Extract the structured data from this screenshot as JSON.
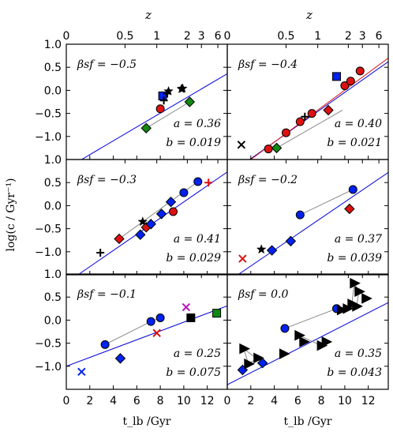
{
  "figure": {
    "ylabel": "log(c / Gyr⁻¹)",
    "top_xlabel": "z",
    "bottom_xlabel": "t_lb /Gyr"
  },
  "chart_data": {
    "type": "scatter",
    "grid": false,
    "shared_axes": {
      "x": {
        "label": "t_lb /Gyr",
        "range": [
          0,
          13.7
        ],
        "ticks": [
          0,
          2,
          4,
          6,
          8,
          10,
          12
        ]
      },
      "y": {
        "label": "log(c / Gyr⁻¹)",
        "range": [
          -1.5,
          1.0
        ],
        "ticks": [
          1.0,
          0.5,
          0.0,
          -0.5,
          -1.0
        ]
      },
      "top": {
        "label": "z",
        "tick_labels": [
          "0",
          "0.5",
          "1",
          "2",
          "3",
          "6"
        ],
        "tick_positions_tlb": [
          0,
          5.0,
          7.7,
          10.3,
          11.5,
          12.9
        ]
      }
    },
    "panels": [
      {
        "id": "p1",
        "row": 0,
        "col": 0,
        "beta_label": "βsf = −0.5",
        "a_label": "a = 0.36",
        "b_label": "b = 0.019",
        "fit_lines": [
          {
            "color": "#0000dd",
            "x": [
              1.3,
              13.7
            ],
            "y": [
              -1.5,
              0.36
            ]
          }
        ],
        "connectors": [
          [
            [
              6.8,
              -0.82
            ],
            [
              10.5,
              -0.25
            ]
          ]
        ],
        "markers": [
          {
            "shape": "diamond",
            "color": "#118811",
            "x": 6.8,
            "y": -0.82
          },
          {
            "shape": "diamond",
            "color": "#118811",
            "x": 10.5,
            "y": -0.25
          },
          {
            "shape": "square",
            "color": "#0022ee",
            "x": 8.2,
            "y": -0.12
          },
          {
            "shape": "circle",
            "color": "#dd1111",
            "x": 8.0,
            "y": -0.4
          },
          {
            "shape": "plus",
            "color": "#000000",
            "x": 8.6,
            "y": -0.07
          },
          {
            "shape": "plus",
            "color": "#000000",
            "x": 8.3,
            "y": -0.22
          },
          {
            "shape": "star",
            "color": "#000000",
            "x": 8.7,
            "y": -0.02
          },
          {
            "shape": "star",
            "color": "#000000",
            "x": 9.8,
            "y": 0.03
          },
          {
            "shape": "star",
            "color": "#000000",
            "x": 9.9,
            "y": 0.04
          }
        ]
      },
      {
        "id": "p2",
        "row": 0,
        "col": 1,
        "beta_label": "βsf = −0.4",
        "a_label": "a = 0.40",
        "b_label": "b = 0.021",
        "fit_lines": [
          {
            "color": "#0000dd",
            "x": [
              1.9,
              13.7
            ],
            "y": [
              -1.5,
              0.62
            ]
          },
          {
            "color": "#dd1111",
            "x": [
              2.0,
              13.7
            ],
            "y": [
              -1.5,
              0.7
            ]
          }
        ],
        "connectors": [
          [
            [
              4.2,
              -1.25
            ],
            [
              9.8,
              -0.43
            ]
          ]
        ],
        "markers": [
          {
            "shape": "x",
            "color": "#000000",
            "x": 1.2,
            "y": -1.18
          },
          {
            "shape": "circle",
            "color": "#dd1111",
            "x": 3.5,
            "y": -1.27
          },
          {
            "shape": "diamond",
            "color": "#118811",
            "x": 4.2,
            "y": -1.25
          },
          {
            "shape": "circle",
            "color": "#dd1111",
            "x": 5.0,
            "y": -0.92
          },
          {
            "shape": "circle",
            "color": "#dd1111",
            "x": 6.2,
            "y": -0.68
          },
          {
            "shape": "plus",
            "color": "#000000",
            "x": 6.6,
            "y": -0.57
          },
          {
            "shape": "circle",
            "color": "#dd1111",
            "x": 7.2,
            "y": -0.5
          },
          {
            "shape": "diamond",
            "color": "#dd1111",
            "x": 8.6,
            "y": -0.43
          },
          {
            "shape": "square",
            "color": "#0022ee",
            "x": 9.3,
            "y": 0.3
          },
          {
            "shape": "circle",
            "color": "#dd1111",
            "x": 10.0,
            "y": 0.1
          },
          {
            "shape": "circle",
            "color": "#dd1111",
            "x": 10.5,
            "y": 0.2
          },
          {
            "shape": "circle",
            "color": "#dd1111",
            "x": 11.3,
            "y": 0.42
          }
        ]
      },
      {
        "id": "p3",
        "row": 1,
        "col": 0,
        "beta_label": "βsf = −0.3",
        "a_label": "a = 0.41",
        "b_label": "b = 0.029",
        "fit_lines": [
          {
            "color": "#0000dd",
            "x": [
              1.0,
              13.7
            ],
            "y": [
              -1.5,
              0.73
            ]
          }
        ],
        "connectors": [
          [
            [
              4.5,
              -0.72
            ],
            [
              11.2,
              0.52
            ]
          ]
        ],
        "markers": [
          {
            "shape": "plus",
            "color": "#000000",
            "x": 2.9,
            "y": -1.02
          },
          {
            "shape": "diamond",
            "color": "#dd1111",
            "x": 4.5,
            "y": -0.72
          },
          {
            "shape": "diamond",
            "color": "#0022ee",
            "x": 6.3,
            "y": -0.63
          },
          {
            "shape": "star",
            "color": "#000000",
            "x": 6.5,
            "y": -0.35
          },
          {
            "shape": "diamond",
            "color": "#dd1111",
            "x": 6.8,
            "y": -0.47
          },
          {
            "shape": "diamond",
            "color": "#0022ee",
            "x": 7.2,
            "y": -0.4
          },
          {
            "shape": "diamond",
            "color": "#0022ee",
            "x": 8.1,
            "y": -0.18
          },
          {
            "shape": "diamond",
            "color": "#0022ee",
            "x": 8.9,
            "y": 0.08
          },
          {
            "shape": "circle",
            "color": "#dd1111",
            "x": 9.1,
            "y": -0.13
          },
          {
            "shape": "circle",
            "color": "#0022ee",
            "x": 10.0,
            "y": 0.28
          },
          {
            "shape": "circle",
            "color": "#0022ee",
            "x": 11.2,
            "y": 0.52
          },
          {
            "shape": "plus",
            "color": "#dd1111",
            "x": 12.1,
            "y": 0.5
          }
        ]
      },
      {
        "id": "p4",
        "row": 1,
        "col": 1,
        "beta_label": "βsf = −0.2",
        "a_label": "a = 0.37",
        "b_label": "b = 0.039",
        "fit_lines": [
          {
            "color": "#0000dd",
            "x": [
              0.9,
              13.7
            ],
            "y": [
              -1.5,
              0.72
            ]
          }
        ],
        "connectors": [
          [
            [
              6.2,
              -0.2
            ],
            [
              10.7,
              0.35
            ]
          ]
        ],
        "markers": [
          {
            "shape": "x",
            "color": "#dd1111",
            "x": 1.3,
            "y": -1.15
          },
          {
            "shape": "star",
            "color": "#000000",
            "x": 2.9,
            "y": -0.95
          },
          {
            "shape": "diamond",
            "color": "#0022ee",
            "x": 3.8,
            "y": -0.97
          },
          {
            "shape": "diamond",
            "color": "#0022ee",
            "x": 5.4,
            "y": -0.77
          },
          {
            "shape": "circle",
            "color": "#0022ee",
            "x": 6.2,
            "y": -0.2
          },
          {
            "shape": "diamond",
            "color": "#dd1111",
            "x": 10.4,
            "y": -0.07
          },
          {
            "shape": "circle",
            "color": "#0022ee",
            "x": 10.7,
            "y": 0.35
          }
        ]
      },
      {
        "id": "p5",
        "row": 2,
        "col": 0,
        "beta_label": "βsf = −0.1",
        "a_label": "a = 0.25",
        "b_label": "b = 0.075",
        "fit_lines": [
          {
            "color": "#0000dd",
            "x": [
              0.0,
              13.7
            ],
            "y": [
              -1.0,
              0.31
            ]
          }
        ],
        "connectors": [
          [
            [
              3.3,
              -0.53
            ],
            [
              7.2,
              -0.03
            ]
          ],
          [
            [
              7.2,
              -0.03
            ],
            [
              8.0,
              0.05
            ]
          ]
        ],
        "markers": [
          {
            "shape": "x",
            "color": "#0022ee",
            "x": 1.3,
            "y": -1.12
          },
          {
            "shape": "circle",
            "color": "#0022ee",
            "x": 3.3,
            "y": -0.53
          },
          {
            "shape": "diamond",
            "color": "#0022ee",
            "x": 4.6,
            "y": -0.83
          },
          {
            "shape": "circle",
            "color": "#0022ee",
            "x": 7.2,
            "y": -0.03
          },
          {
            "shape": "x",
            "color": "#dd1111",
            "x": 7.7,
            "y": -0.28
          },
          {
            "shape": "circle",
            "color": "#0022ee",
            "x": 8.0,
            "y": 0.05
          },
          {
            "shape": "x",
            "color": "#bb11bb",
            "x": 10.2,
            "y": 0.28
          },
          {
            "shape": "square",
            "color": "#000000",
            "x": 10.6,
            "y": 0.05
          },
          {
            "shape": "square",
            "color": "#118811",
            "x": 12.8,
            "y": 0.15
          }
        ]
      },
      {
        "id": "p6",
        "row": 2,
        "col": 1,
        "beta_label": "βsf = 0.0",
        "a_label": "a = 0.35",
        "b_label": "b = 0.043",
        "fit_lines": [
          {
            "color": "#0000dd",
            "x": [
              0.0,
              13.7
            ],
            "y": [
              -1.4,
              0.38
            ]
          }
        ],
        "connectors": [
          [
            [
              1.4,
              -0.62
            ],
            [
              1.8,
              -0.95
            ]
          ],
          [
            [
              1.8,
              -0.95
            ],
            [
              2.6,
              -0.82
            ]
          ],
          [
            [
              4.9,
              -0.18
            ],
            [
              9.3,
              0.25
            ]
          ],
          [
            [
              1.4,
              -0.62
            ],
            [
              3.0,
              -0.93
            ]
          ],
          [
            [
              6.1,
              -0.33
            ],
            [
              8.0,
              -0.55
            ]
          ],
          [
            [
              8.0,
              -0.55
            ],
            [
              8.4,
              -0.47
            ]
          ],
          [
            [
              10.6,
              0.35
            ],
            [
              10.8,
              0.8
            ]
          ],
          [
            [
              10.8,
              0.8
            ],
            [
              11.2,
              0.62
            ]
          ],
          [
            [
              11.2,
              0.62
            ],
            [
              11.0,
              0.3
            ]
          ]
        ],
        "markers": [
          {
            "shape": "diamond",
            "color": "#0022ee",
            "x": 1.3,
            "y": -1.08
          },
          {
            "shape": "triangle-right",
            "color": "#000000",
            "x": 1.4,
            "y": -0.62
          },
          {
            "shape": "triangle-right",
            "color": "#000000",
            "x": 1.8,
            "y": -0.95
          },
          {
            "shape": "triangle-right",
            "color": "#000000",
            "x": 2.6,
            "y": -0.82
          },
          {
            "shape": "diamond",
            "color": "#0022ee",
            "x": 3.0,
            "y": -0.93
          },
          {
            "shape": "triangle-right",
            "color": "#000000",
            "x": 4.8,
            "y": -0.73
          },
          {
            "shape": "circle",
            "color": "#0022ee",
            "x": 4.9,
            "y": -0.18
          },
          {
            "shape": "triangle-right",
            "color": "#000000",
            "x": 6.1,
            "y": -0.33
          },
          {
            "shape": "triangle-right",
            "color": "#000000",
            "x": 6.5,
            "y": -0.47
          },
          {
            "shape": "triangle-right",
            "color": "#000000",
            "x": 8.0,
            "y": -0.55
          },
          {
            "shape": "triangle-right",
            "color": "#000000",
            "x": 8.4,
            "y": -0.47
          },
          {
            "shape": "circle",
            "color": "#0022ee",
            "x": 9.3,
            "y": 0.25
          },
          {
            "shape": "triangle-right",
            "color": "#000000",
            "x": 9.7,
            "y": 0.22
          },
          {
            "shape": "triangle-right",
            "color": "#000000",
            "x": 10.2,
            "y": 0.25
          },
          {
            "shape": "triangle-right",
            "color": "#000000",
            "x": 10.6,
            "y": 0.35
          },
          {
            "shape": "triangle-right",
            "color": "#000000",
            "x": 10.8,
            "y": 0.8
          },
          {
            "shape": "triangle-right",
            "color": "#000000",
            "x": 11.2,
            "y": 0.62
          },
          {
            "shape": "triangle-right",
            "color": "#000000",
            "x": 11.0,
            "y": 0.3
          },
          {
            "shape": "triangle-right",
            "color": "#000000",
            "x": 11.8,
            "y": 0.47
          }
        ]
      }
    ]
  }
}
